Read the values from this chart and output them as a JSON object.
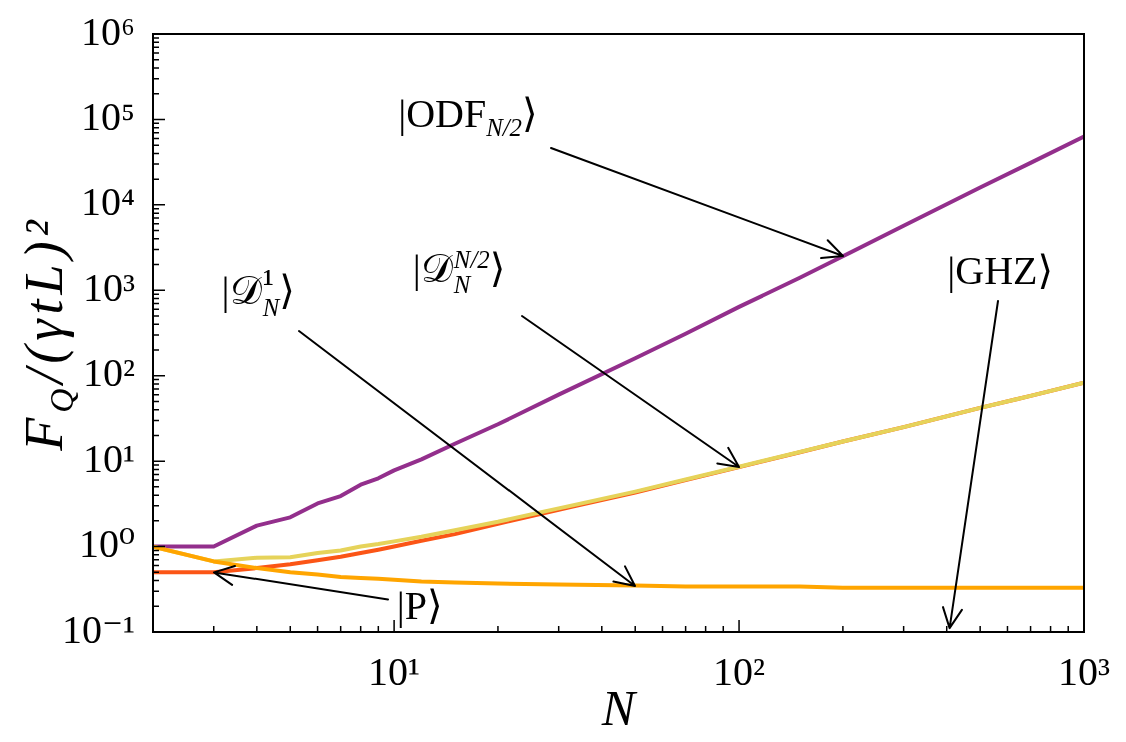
{
  "chart_data": {
    "type": "line",
    "log": "xy",
    "xlabel": "N",
    "ylabel": "F$_{Q}$/(γtL)²",
    "xlim": [
      2,
      1000
    ],
    "ylim": [
      0.1,
      1000000
    ],
    "xticks": [
      {
        "value": 3,
        "label": null
      },
      {
        "value": 4,
        "label": null
      },
      {
        "value": 5,
        "label": null
      },
      {
        "value": 6,
        "label": null
      },
      {
        "value": 7,
        "label": null
      },
      {
        "value": 8,
        "label": null
      },
      {
        "value": 9,
        "label": null
      },
      {
        "value": 10,
        "label": "10¹"
      },
      {
        "value": 20,
        "label": null
      },
      {
        "value": 30,
        "label": null
      },
      {
        "value": 40,
        "label": null
      },
      {
        "value": 50,
        "label": null
      },
      {
        "value": 60,
        "label": null
      },
      {
        "value": 70,
        "label": null
      },
      {
        "value": 80,
        "label": null
      },
      {
        "value": 90,
        "label": null
      },
      {
        "value": 100,
        "label": "10²"
      },
      {
        "value": 200,
        "label": null
      },
      {
        "value": 300,
        "label": null
      },
      {
        "value": 400,
        "label": null
      },
      {
        "value": 500,
        "label": null
      },
      {
        "value": 600,
        "label": null
      },
      {
        "value": 700,
        "label": null
      },
      {
        "value": 800,
        "label": null
      },
      {
        "value": 900,
        "label": null
      },
      {
        "value": 1000,
        "label": "10³"
      }
    ],
    "yticks": [
      {
        "value": 0.1,
        "label": "10⁻¹"
      },
      {
        "value": 0.2,
        "label": null
      },
      {
        "value": 0.3,
        "label": null
      },
      {
        "value": 0.4,
        "label": null
      },
      {
        "value": 0.5,
        "label": null
      },
      {
        "value": 0.6,
        "label": null
      },
      {
        "value": 0.7,
        "label": null
      },
      {
        "value": 0.8,
        "label": null
      },
      {
        "value": 0.9,
        "label": null
      },
      {
        "value": 1,
        "label": "10⁰"
      },
      {
        "value": 2,
        "label": null
      },
      {
        "value": 3,
        "label": null
      },
      {
        "value": 4,
        "label": null
      },
      {
        "value": 5,
        "label": null
      },
      {
        "value": 6,
        "label": null
      },
      {
        "value": 7,
        "label": null
      },
      {
        "value": 8,
        "label": null
      },
      {
        "value": 9,
        "label": null
      },
      {
        "value": 10,
        "label": "10¹"
      },
      {
        "value": 20,
        "label": null
      },
      {
        "value": 30,
        "label": null
      },
      {
        "value": 40,
        "label": null
      },
      {
        "value": 50,
        "label": null
      },
      {
        "value": 60,
        "label": null
      },
      {
        "value": 70,
        "label": null
      },
      {
        "value": 80,
        "label": null
      },
      {
        "value": 90,
        "label": null
      },
      {
        "value": 100,
        "label": "10²"
      },
      {
        "value": 200,
        "label": null
      },
      {
        "value": 300,
        "label": null
      },
      {
        "value": 400,
        "label": null
      },
      {
        "value": 500,
        "label": null
      },
      {
        "value": 600,
        "label": null
      },
      {
        "value": 700,
        "label": null
      },
      {
        "value": 800,
        "label": null
      },
      {
        "value": 900,
        "label": null
      },
      {
        "value": 1000,
        "label": "10³"
      },
      {
        "value": 2000,
        "label": null
      },
      {
        "value": 3000,
        "label": null
      },
      {
        "value": 4000,
        "label": null
      },
      {
        "value": 5000,
        "label": null
      },
      {
        "value": 6000,
        "label": null
      },
      {
        "value": 7000,
        "label": null
      },
      {
        "value": 8000,
        "label": null
      },
      {
        "value": 9000,
        "label": null
      },
      {
        "value": 10000,
        "label": "10⁴"
      },
      {
        "value": 20000,
        "label": null
      },
      {
        "value": 30000,
        "label": null
      },
      {
        "value": 40000,
        "label": null
      },
      {
        "value": 50000,
        "label": null
      },
      {
        "value": 60000,
        "label": null
      },
      {
        "value": 70000,
        "label": null
      },
      {
        "value": 80000,
        "label": null
      },
      {
        "value": 90000,
        "label": null
      },
      {
        "value": 100000,
        "label": "10⁵"
      },
      {
        "value": 200000,
        "label": null
      },
      {
        "value": 300000,
        "label": null
      },
      {
        "value": 400000,
        "label": null
      },
      {
        "value": 500000,
        "label": null
      },
      {
        "value": 600000,
        "label": null
      },
      {
        "value": 700000,
        "label": null
      },
      {
        "value": 800000,
        "label": null
      },
      {
        "value": 900000,
        "label": null
      },
      {
        "value": 1000000,
        "label": "10⁶"
      }
    ],
    "x": [
      2,
      3,
      4,
      5,
      6,
      7,
      8,
      9,
      10,
      12,
      15,
      20,
      30,
      50,
      70,
      100,
      150,
      200,
      300,
      500,
      700,
      1000
    ],
    "series": [
      {
        "color": "#932f8c",
        "values": [
          1,
          1,
          1.76,
          2.2,
          3.2,
          3.9,
          5.3,
          6.3,
          7.8,
          10.5,
          16,
          27,
          60,
          160,
          310,
          640,
          1400,
          2500,
          5700,
          16000,
          31000,
          63000
        ]
      },
      {
        "color": "#fb5516",
        "values": [
          0.5,
          0.5,
          0.56,
          0.62,
          0.69,
          0.76,
          0.84,
          0.92,
          1.0,
          1.17,
          1.4,
          1.85,
          2.7,
          4.3,
          6.0,
          8.5,
          12.7,
          17,
          25,
          42,
          58,
          83
        ]
      },
      {
        "color": "#e6d35a",
        "values": [
          1.0,
          0.67,
          0.74,
          0.75,
          0.84,
          0.9,
          1.0,
          1.07,
          1.15,
          1.3,
          1.55,
          1.95,
          2.8,
          4.4,
          6.1,
          8.6,
          12.8,
          17,
          25,
          42,
          58,
          83
        ]
      },
      {
        "color": "#ffa500",
        "values": [
          1.0,
          0.67,
          0.56,
          0.5,
          0.47,
          0.44,
          0.43,
          0.42,
          0.41,
          0.39,
          0.38,
          0.37,
          0.36,
          0.35,
          0.34,
          0.34,
          0.34,
          0.33,
          0.33,
          0.33,
          0.33,
          0.33
        ]
      }
    ],
    "annotations": [
      {
        "text": "|ODF$_{N/2}$⟩",
        "x": 200,
        "y": 2500
      },
      {
        "text": "|𝒟$_{N}$$^{N/2}$⟩",
        "x": 100,
        "y": 8.6
      },
      {
        "text": "|𝒟$_{N}$¹⟩",
        "x": 50,
        "y": 0.35
      },
      "|GHZ⟩",
      {
        "text": "|P⟩",
        "x": 3,
        "y": 0.5
      }
    ]
  }
}
